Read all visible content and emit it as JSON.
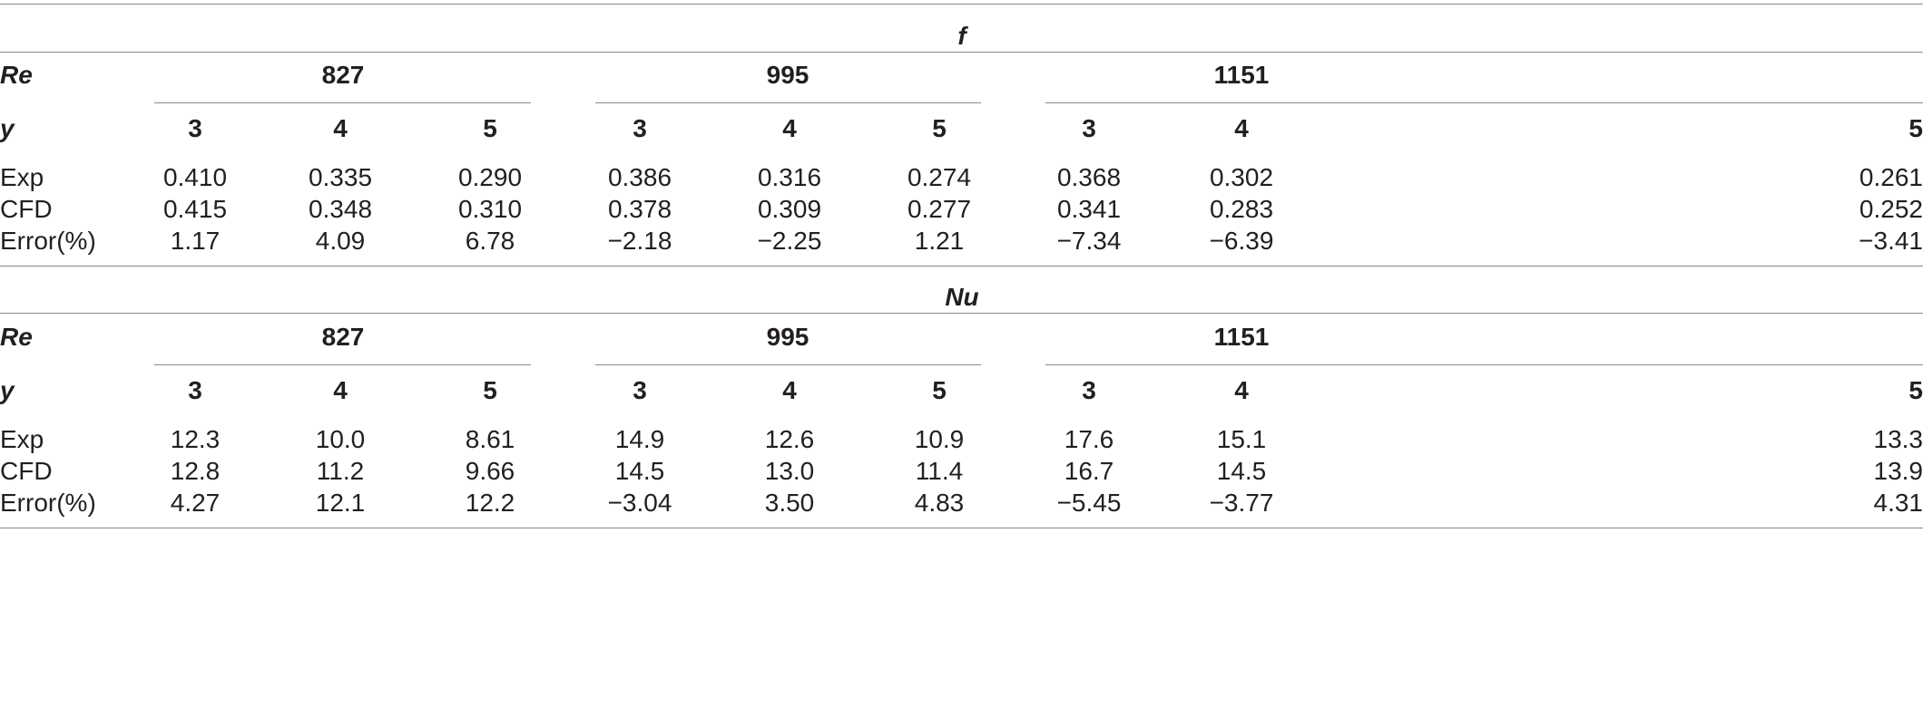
{
  "sections": [
    {
      "title": "f",
      "re_label": "Re",
      "y_label": "y",
      "re_groups": [
        "827",
        "995",
        "1151"
      ],
      "y_values": [
        "3",
        "4",
        "5",
        "3",
        "4",
        "5",
        "3",
        "4",
        "5"
      ],
      "rows": [
        {
          "label": "Exp",
          "values": [
            "0.410",
            "0.335",
            "0.290",
            "0.386",
            "0.316",
            "0.274",
            "0.368",
            "0.302",
            "0.261"
          ]
        },
        {
          "label": "CFD",
          "values": [
            "0.415",
            "0.348",
            "0.310",
            "0.378",
            "0.309",
            "0.277",
            "0.341",
            "0.283",
            "0.252"
          ]
        },
        {
          "label": "Error(%)",
          "values": [
            "1.17",
            "4.09",
            "6.78",
            "−2.18",
            "−2.25",
            "1.21",
            "−7.34",
            "−6.39",
            "−3.41"
          ]
        }
      ]
    },
    {
      "title": "Nu",
      "re_label": "Re",
      "y_label": "y",
      "re_groups": [
        "827",
        "995",
        "1151"
      ],
      "y_values": [
        "3",
        "4",
        "5",
        "3",
        "4",
        "5",
        "3",
        "4",
        "5"
      ],
      "rows": [
        {
          "label": "Exp",
          "values": [
            "12.3",
            "10.0",
            "8.61",
            "14.9",
            "12.6",
            "10.9",
            "17.6",
            "15.1",
            "13.3"
          ]
        },
        {
          "label": "CFD",
          "values": [
            "12.8",
            "11.2",
            "9.66",
            "14.5",
            "13.0",
            "11.4",
            "16.7",
            "14.5",
            "13.9"
          ]
        },
        {
          "label": "Error(%)",
          "values": [
            "4.27",
            "12.1",
            "12.2",
            "−3.04",
            "3.50",
            "4.83",
            "−5.45",
            "−3.77",
            "4.31"
          ]
        }
      ]
    }
  ]
}
